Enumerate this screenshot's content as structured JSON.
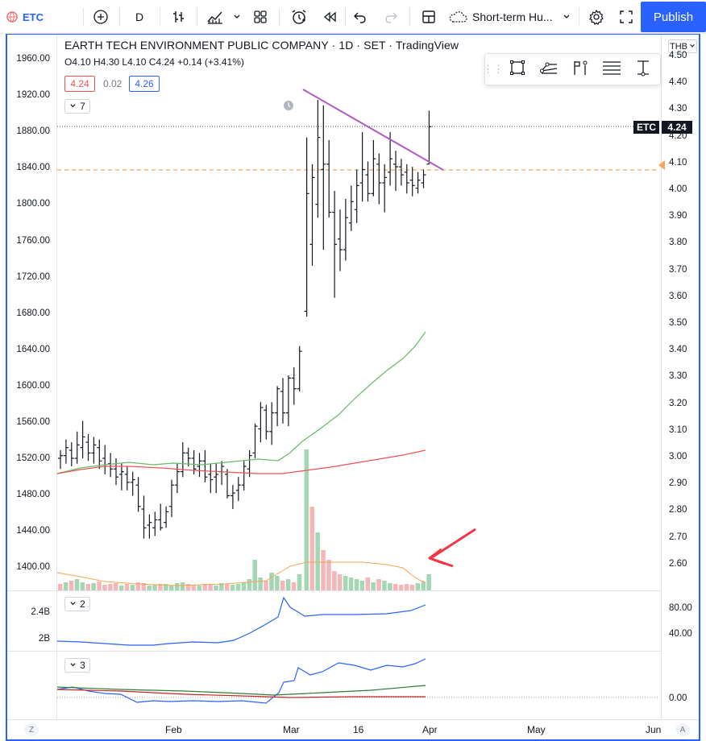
{
  "toolbar": {
    "symbol": "ETC",
    "interval": "D",
    "layout_name": "Short-term Hu...",
    "publish_label": "Publish"
  },
  "legend": {
    "title": "EARTH TECH ENVIRONMENT PUBLIC COMPANY · 1D · SET · TradingView",
    "open": "O4.10",
    "high": "H4.30",
    "low": "L4.10",
    "close": "C4.24",
    "change": "+0.14 (+3.41%)",
    "bid": "4.24",
    "spread": "0.02",
    "ask": "4.26",
    "studies_count": "7",
    "pane2_count": "2",
    "pane3_count": "3"
  },
  "price_axis": {
    "currency": "THB",
    "last_price": "4.24",
    "symbol_tag": "ETC",
    "right_labels": [
      "4.50",
      "4.40",
      "4.30",
      "4.20",
      "4.10",
      "4.00",
      "3.90",
      "3.80",
      "3.70",
      "3.60",
      "3.50",
      "3.40",
      "3.30",
      "3.20",
      "3.10",
      "3.00",
      "2.90",
      "2.80",
      "2.70",
      "2.60"
    ],
    "left_labels": [
      "1960.00",
      "1920.00",
      "1880.00",
      "1840.00",
      "1800.00",
      "1760.00",
      "1720.00",
      "1680.00",
      "1640.00",
      "1600.00",
      "1560.00",
      "1520.00",
      "1480.00",
      "1440.00",
      "1400.00"
    ]
  },
  "pane2": {
    "left_labels": [
      "2.4B",
      "2B"
    ],
    "right_labels": [
      "80.00",
      "40.00"
    ]
  },
  "pane3": {
    "right_labels": [
      "0.00"
    ]
  },
  "time_axis": {
    "labels": [
      "Feb",
      "Mar",
      "16",
      "Apr",
      "May",
      "Jun"
    ]
  },
  "corners": {
    "left": "Z",
    "right": "A"
  },
  "colors": {
    "accent": "#2962ff",
    "ma_fast": "#66bb6a",
    "ma_slow": "#ef5350",
    "trendline": "#b05bc5",
    "level_line": "#f7a552",
    "volume_up": "#a5d6b4",
    "volume_down": "#f4b6b9",
    "annotation_arrow": "#f23645"
  }
}
